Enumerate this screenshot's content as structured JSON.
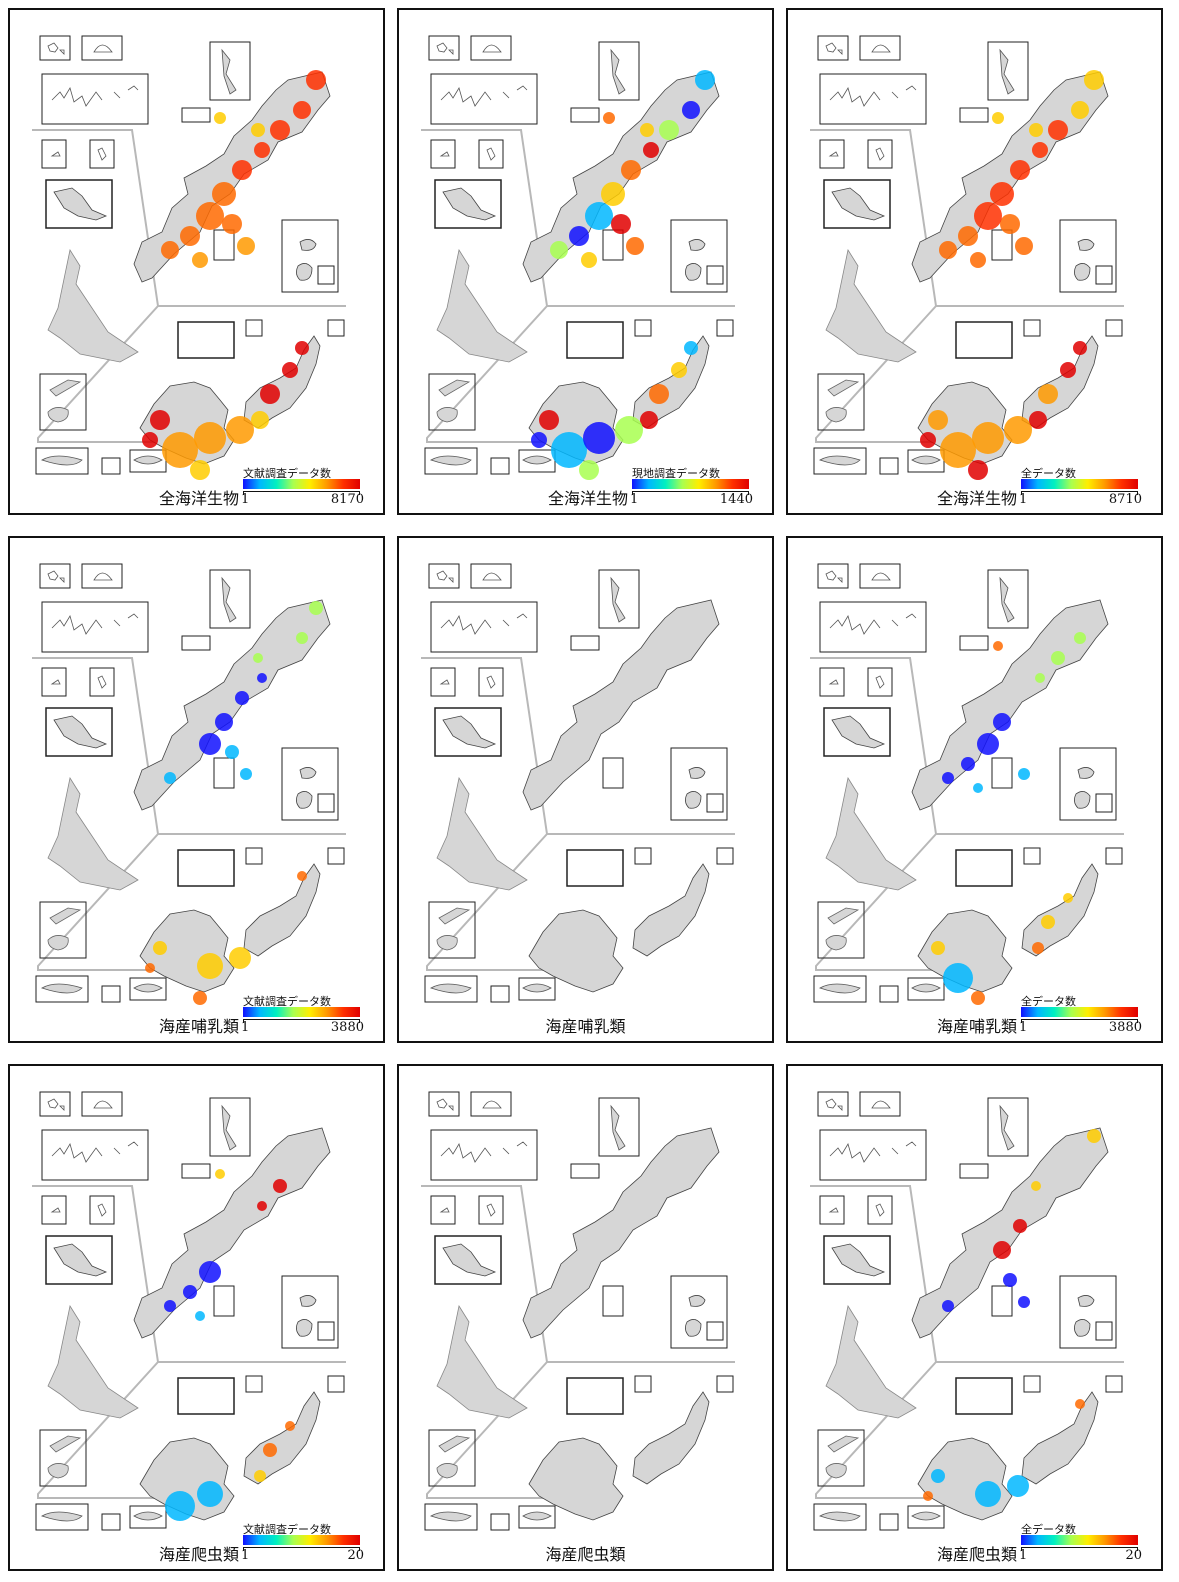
{
  "panels": [
    {
      "caption": "全海洋生物",
      "legend_title": "文献調査データ数",
      "legend_min": "1",
      "legend_max": "8170",
      "intensity": "high"
    },
    {
      "caption": "全海洋生物",
      "legend_title": "現地調査データ数",
      "legend_min": "1",
      "legend_max": "1440",
      "intensity": "mixed"
    },
    {
      "caption": "全海洋生物",
      "legend_title": "全データ数",
      "legend_min": "1",
      "legend_max": "8710",
      "intensity": "high"
    },
    {
      "caption": "海産哺乳類",
      "legend_title": "文献調査データ数",
      "legend_min": "1",
      "legend_max": "3880",
      "intensity": "mammal"
    },
    {
      "caption": "海産哺乳類",
      "legend_title": "",
      "legend_min": "",
      "legend_max": "",
      "intensity": "none"
    },
    {
      "caption": "海産哺乳類",
      "legend_title": "全データ数",
      "legend_min": "1",
      "legend_max": "3880",
      "intensity": "mammal"
    },
    {
      "caption": "海産爬虫類",
      "legend_title": "文献調査データ数",
      "legend_min": "1",
      "legend_max": "20",
      "intensity": "reptile"
    },
    {
      "caption": "海産爬虫類",
      "legend_title": "",
      "legend_min": "",
      "legend_max": "",
      "intensity": "none"
    },
    {
      "caption": "海産爬虫類",
      "legend_title": "全データ数",
      "legend_min": "1",
      "legend_max": "20",
      "intensity": "reptile"
    }
  ],
  "colors": {
    "land": "#d6d6d6",
    "outline": "#444444",
    "divider": "#b8b8b8",
    "scale_low": "#1010ff",
    "scale_mid": "#ffee00",
    "scale_high": "#e00000"
  }
}
